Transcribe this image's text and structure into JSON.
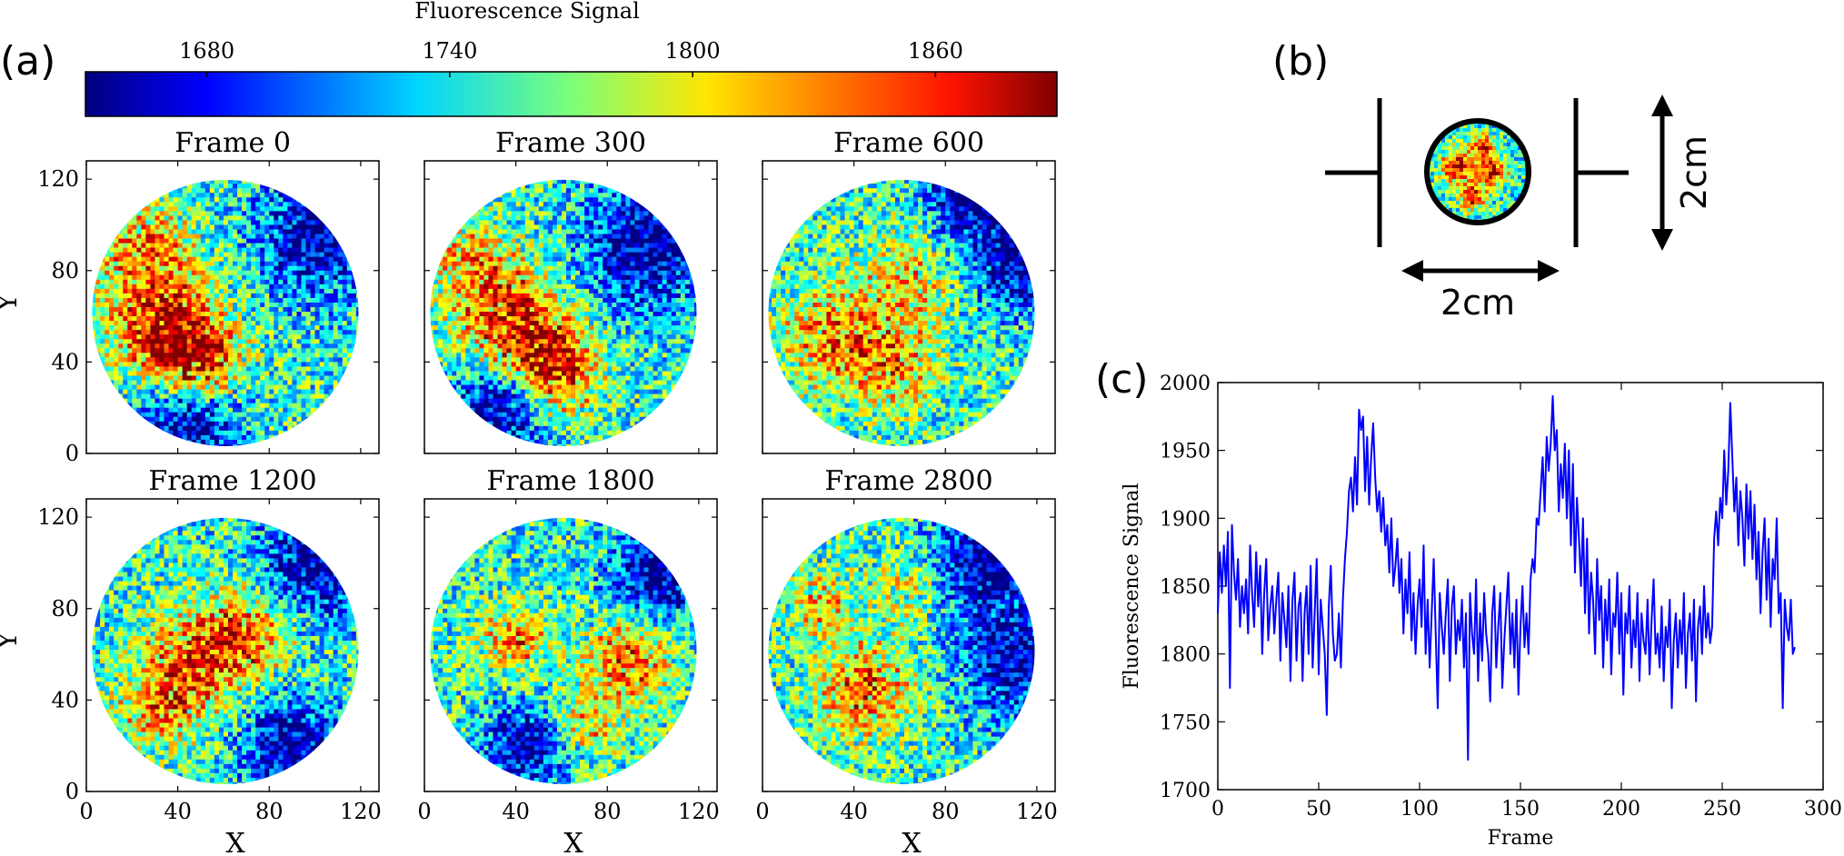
{
  "panel_labels": {
    "a": "(a)",
    "b": "(b)",
    "c": "(c)"
  },
  "colorbar": {
    "title": "Fluorescence Signal",
    "ticks": [
      "1680",
      "1740",
      "1800",
      "1860"
    ],
    "tick_values": [
      1680,
      1740,
      1800,
      1860
    ],
    "range": [
      1650,
      1890
    ],
    "colormap": "jet"
  },
  "heatmaps": {
    "xlabel": "X",
    "ylabel": "Y",
    "x_ticks": [
      "0",
      "40",
      "80",
      "120"
    ],
    "y_ticks": [
      "0",
      "40",
      "80",
      "120"
    ],
    "axis_range": [
      0,
      128
    ],
    "frames": [
      {
        "title": "Frame 0"
      },
      {
        "title": "Frame 300"
      },
      {
        "title": "Frame 600"
      },
      {
        "title": "Frame 1200"
      },
      {
        "title": "Frame 1800"
      },
      {
        "title": "Frame 2800"
      }
    ]
  },
  "schematic": {
    "horizontal_dimension": "2cm",
    "vertical_dimension": "2cm"
  },
  "chart_data": {
    "type": "line",
    "title": "",
    "xlabel": "Frame",
    "ylabel": "Fluorescence Signal",
    "xlim": [
      0,
      300
    ],
    "ylim": [
      1700,
      2000
    ],
    "x_ticks": [
      "0",
      "50",
      "100",
      "150",
      "200",
      "250",
      "300"
    ],
    "y_ticks": [
      "1700",
      "1750",
      "1800",
      "1850",
      "1900",
      "1950",
      "2000"
    ],
    "line_color": "#0000ff",
    "series": [
      {
        "name": "signal",
        "x_start": 0,
        "x_step": 1,
        "values": [
          1830,
          1875,
          1845,
          1880,
          1850,
          1890,
          1775,
          1895,
          1860,
          1840,
          1870,
          1820,
          1850,
          1830,
          1855,
          1815,
          1880,
          1845,
          1820,
          1875,
          1835,
          1865,
          1800,
          1845,
          1870,
          1810,
          1835,
          1850,
          1815,
          1840,
          1860,
          1795,
          1845,
          1825,
          1805,
          1850,
          1780,
          1840,
          1860,
          1795,
          1835,
          1845,
          1780,
          1830,
          1850,
          1800,
          1865,
          1790,
          1830,
          1870,
          1785,
          1840,
          1820,
          1800,
          1755,
          1835,
          1865,
          1815,
          1795,
          1800,
          1830,
          1790,
          1840,
          1870,
          1890,
          1920,
          1930,
          1905,
          1945,
          1910,
          1980,
          1965,
          1975,
          1920,
          1960,
          1910,
          1945,
          1970,
          1930,
          1905,
          1920,
          1890,
          1915,
          1880,
          1895,
          1860,
          1900,
          1850,
          1865,
          1885,
          1845,
          1870,
          1815,
          1855,
          1830,
          1875,
          1810,
          1845,
          1800,
          1835,
          1855,
          1820,
          1880,
          1800,
          1840,
          1790,
          1830,
          1870,
          1815,
          1760,
          1845,
          1820,
          1800,
          1830,
          1855,
          1780,
          1835,
          1850,
          1800,
          1825,
          1810,
          1840,
          1790,
          1830,
          1722,
          1845,
          1815,
          1800,
          1855,
          1780,
          1830,
          1795,
          1845,
          1815,
          1800,
          1765,
          1830,
          1850,
          1790,
          1820,
          1845,
          1775,
          1810,
          1835,
          1860,
          1800,
          1830,
          1790,
          1840,
          1770,
          1820,
          1850,
          1805,
          1830,
          1800,
          1855,
          1870,
          1860,
          1900,
          1895,
          1920,
          1945,
          1905,
          1960,
          1935,
          1955,
          1990,
          1950,
          1965,
          1905,
          1940,
          1915,
          1955,
          1900,
          1950,
          1880,
          1940,
          1860,
          1915,
          1885,
          1850,
          1900,
          1830,
          1885,
          1815,
          1860,
          1840,
          1800,
          1870,
          1825,
          1850,
          1790,
          1840,
          1810,
          1855,
          1785,
          1830,
          1820,
          1860,
          1800,
          1845,
          1770,
          1830,
          1815,
          1850,
          1790,
          1825,
          1805,
          1845,
          1780,
          1830,
          1810,
          1800,
          1840,
          1785,
          1825,
          1855,
          1800,
          1815,
          1790,
          1835,
          1780,
          1820,
          1805,
          1840,
          1760,
          1810,
          1830,
          1790,
          1825,
          1800,
          1845,
          1775,
          1815,
          1830,
          1795,
          1840,
          1765,
          1820,
          1835,
          1800,
          1850,
          1812,
          1830,
          1808,
          1820,
          1885,
          1905,
          1880,
          1915,
          1900,
          1950,
          1910,
          1935,
          1985,
          1945,
          1905,
          1930,
          1880,
          1920,
          1900,
          1865,
          1925,
          1885,
          1920,
          1870,
          1910,
          1855,
          1890,
          1830,
          1875,
          1900,
          1840,
          1885,
          1820,
          1870,
          1855,
          1900,
          1830,
          1845,
          1760,
          1840,
          1820,
          1810,
          1840,
          1800,
          1805
        ]
      }
    ]
  }
}
